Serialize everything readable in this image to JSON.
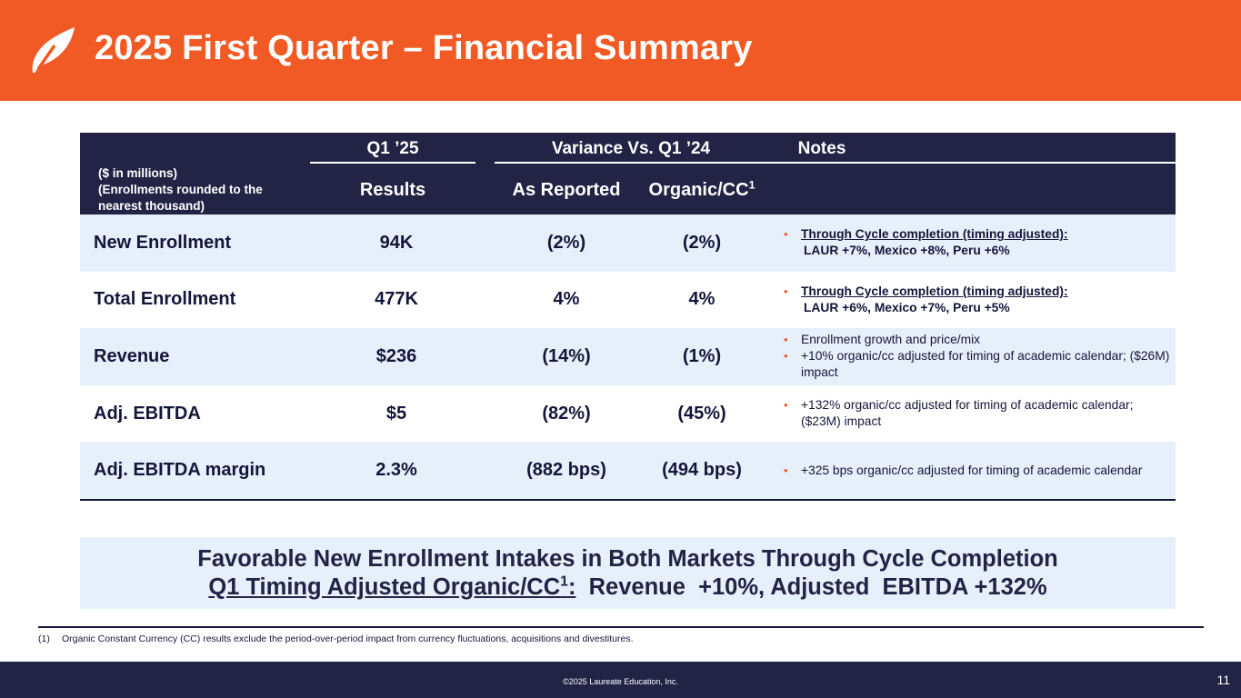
{
  "header": {
    "title": "2025 First Quarter – Financial Summary",
    "logo_icon": "laureate-leaf-icon",
    "bg_color": "#f15a24"
  },
  "table": {
    "units_note": [
      "($ in millions)",
      "(Enrollments  rounded  to the",
      "nearest thousand)"
    ],
    "group_headers": {
      "q1": "Q1 ’25",
      "variance": "Variance Vs. Q1 ’24",
      "notes": "Notes"
    },
    "column_headers": {
      "results": "Results",
      "as_reported": "As Reported",
      "organic": "Organic/CC",
      "organic_sup": "1"
    },
    "rows": [
      {
        "metric": "New Enrollment",
        "results": "94K",
        "as_reported": "(2%)",
        "organic": "(2%)",
        "note_heading": "Through  Cycle  completion  (timing  adjusted):",
        "note_detail": "LAUR +7%, Mexico  +8%, Peru +6%"
      },
      {
        "metric": "Total Enrollment",
        "results": "477K",
        "as_reported": "4%",
        "organic": "4%",
        "note_heading": "Through  Cycle  completion  (timing  adjusted):",
        "note_detail": "LAUR +6%, Mexico  +7%, Peru +5%"
      },
      {
        "metric": "Revenue",
        "results": "$236",
        "as_reported": "(14%)",
        "organic": "(1%)",
        "notes": [
          "Enrollment  growth and price/mix",
          "+10% organic/cc adjusted  for timing of academic calendar; ($26M) impact"
        ]
      },
      {
        "metric": "Adj. EBITDA",
        "results": "$5",
        "as_reported": "(82%)",
        "organic": "(45%)",
        "notes": [
          "+132% organic/cc adjusted  for timing of academic calendar;  ($23M) impact"
        ]
      },
      {
        "metric": "Adj. EBITDA margin",
        "results": "2.3%",
        "as_reported": "(882 bps)",
        "organic": "(494 bps)",
        "notes": [
          "+325 bps organic/cc adjusted  for timing of academic calendar"
        ]
      }
    ]
  },
  "banner": {
    "line1": "Favorable  New Enrollment  Intakes  in Both Markets Through  Cycle Completion",
    "line2_underlined": "Q1 Timing Adjusted  Organic/CC",
    "line2_sup": "1",
    "line2_colon": ":",
    "line2_rest": "  Revenue  +10%, Adjusted  EBITDA +132%"
  },
  "footnote": {
    "number": "(1)",
    "text": "Organic  Constant  Currency  (CC) results  exclude  the  period-over-period  impact from currency  fluctuations,  acquisitions  and  divestitures."
  },
  "footer": {
    "copyright": "©2025 Laureate Education, Inc.",
    "page_number": "11"
  },
  "colors": {
    "accent": "#f15a24",
    "navy": "#222345",
    "row_shade": "#e6f0fb"
  }
}
